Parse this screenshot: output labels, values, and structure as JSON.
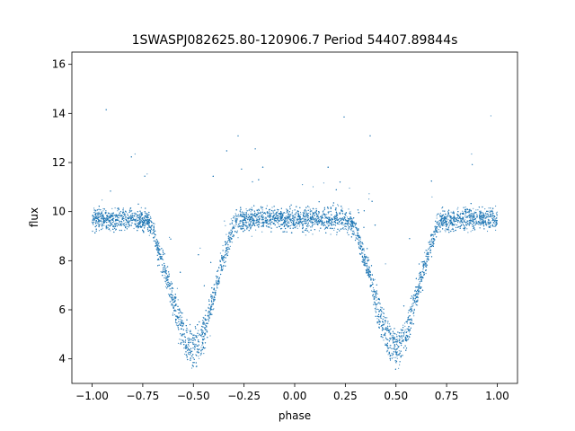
{
  "chart_data": {
    "type": "scatter",
    "title": "1SWASPJ082625.80-120906.7 Period 54407.89844s",
    "xlabel": "phase",
    "ylabel": "flux",
    "xlim": [
      -1.1,
      1.1
    ],
    "ylim": [
      3.0,
      16.5
    ],
    "x_ticks": [
      -1.0,
      -0.75,
      -0.5,
      -0.25,
      0.0,
      0.25,
      0.5,
      0.75,
      1.0
    ],
    "x_tick_labels": [
      "−1.00",
      "−0.75",
      "−0.50",
      "−0.25",
      "0.00",
      "0.25",
      "0.50",
      "0.75",
      "1.00"
    ],
    "y_ticks": [
      4,
      6,
      8,
      10,
      12,
      14,
      16
    ],
    "y_tick_labels": [
      "4",
      "6",
      "8",
      "10",
      "12",
      "14",
      "16"
    ],
    "grid": false,
    "legend": "none",
    "marker_color": "#1f77b4",
    "series": [
      {
        "x": [
          -0.98,
          -0.9,
          -0.8,
          -0.72,
          -0.7,
          -0.68,
          -0.65,
          -0.62,
          -0.6,
          -0.58,
          -0.56,
          -0.54,
          -0.52,
          -0.5,
          -0.48,
          -0.46,
          -0.44,
          -0.42,
          -0.4,
          -0.38,
          -0.35,
          -0.32,
          -0.3,
          -0.28,
          -0.2,
          -0.1,
          0.0,
          0.1,
          0.2,
          0.28,
          0.3,
          0.32,
          0.35,
          0.38,
          0.4,
          0.42,
          0.44,
          0.46,
          0.48,
          0.5,
          0.52,
          0.54,
          0.56,
          0.58,
          0.6,
          0.62,
          0.65,
          0.68,
          0.7,
          0.72,
          0.8,
          0.9,
          0.98
        ],
        "y": [
          9.7,
          9.7,
          9.7,
          9.6,
          9.3,
          8.6,
          7.9,
          7.0,
          6.4,
          5.8,
          5.2,
          4.8,
          4.5,
          4.4,
          4.5,
          4.8,
          5.3,
          5.9,
          6.6,
          7.3,
          8.1,
          8.9,
          9.4,
          9.6,
          9.7,
          9.7,
          9.7,
          9.7,
          9.7,
          9.6,
          9.3,
          8.7,
          7.9,
          7.1,
          6.4,
          5.8,
          5.2,
          4.8,
          4.5,
          4.4,
          4.5,
          4.8,
          5.3,
          5.9,
          6.5,
          7.2,
          8.0,
          8.8,
          9.3,
          9.6,
          9.7,
          9.7,
          9.7
        ]
      }
    ]
  }
}
